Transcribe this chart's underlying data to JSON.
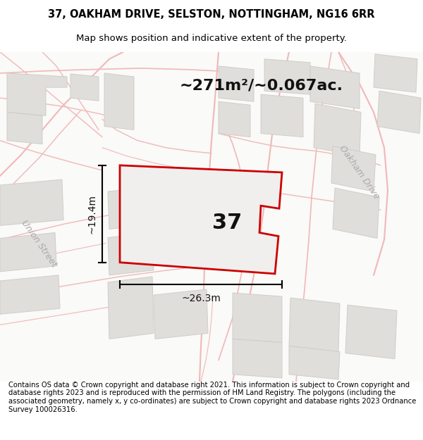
{
  "title": "37, OAKHAM DRIVE, SELSTON, NOTTINGHAM, NG16 6RR",
  "subtitle": "Map shows position and indicative extent of the property.",
  "area_text": "~271m²/~0.067ac.",
  "width_label": "~26.3m",
  "height_label": "~19.4m",
  "number_label": "37",
  "footer": "Contains OS data © Crown copyright and database right 2021. This information is subject to Crown copyright and database rights 2023 and is reproduced with the permission of HM Land Registry. The polygons (including the associated geometry, namely x, y co-ordinates) are subject to Crown copyright and database rights 2023 Ordnance Survey 100026316.",
  "map_bg": "#ffffff",
  "plot_fill": "#f0efed",
  "plot_edge": "#cc0000",
  "road_line_color": "#f0b8b8",
  "building_fill": "#e0dedb",
  "building_edge": "#d0cdc8",
  "title_fontsize": 10.5,
  "subtitle_fontsize": 9.5,
  "footer_fontsize": 7.2,
  "area_fontsize": 16,
  "number_fontsize": 22,
  "dim_fontsize": 10,
  "road_label_fontsize": 9,
  "road_label_color": "#aaaaaa"
}
